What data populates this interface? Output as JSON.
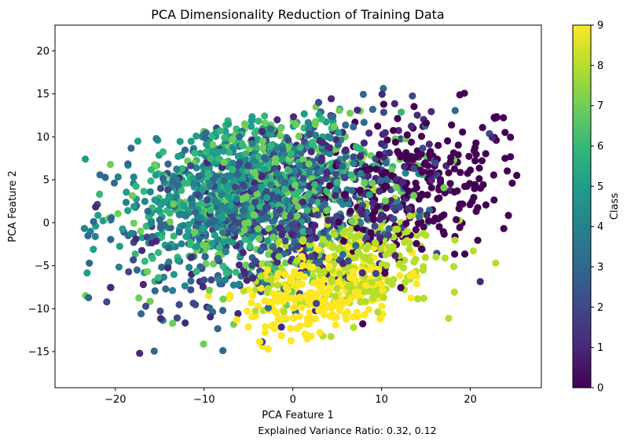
{
  "chart_data": {
    "type": "scatter",
    "title": "PCA Dimensionality Reduction of Training Data",
    "xlabel": "PCA Feature 1",
    "ylabel": "PCA Feature 2",
    "footnote": "Explained Variance Ratio: 0.32, 0.12",
    "xlim": [
      -26.8,
      28.0
    ],
    "ylim": [
      -19.2,
      23.0
    ],
    "xticks": [
      -20,
      -10,
      0,
      10,
      20
    ],
    "yticks": [
      -15,
      -10,
      -5,
      0,
      5,
      10,
      15,
      20
    ],
    "xtick_labels": [
      "−20",
      "−10",
      "0",
      "10",
      "20"
    ],
    "ytick_labels": [
      "−15",
      "−10",
      "−5",
      "0",
      "5",
      "10",
      "15",
      "20"
    ],
    "grid": false,
    "colormap": "viridis",
    "colorbar": {
      "label": "Class",
      "range": [
        0,
        9
      ],
      "ticks": [
        0,
        1,
        2,
        3,
        4,
        5,
        6,
        7,
        8,
        9
      ],
      "tick_labels": [
        "0",
        "1",
        "2",
        "3",
        "4",
        "5",
        "6",
        "7",
        "8",
        "9"
      ]
    },
    "classes": [
      0,
      1,
      2,
      3,
      4,
      5,
      6,
      7,
      8,
      9
    ],
    "class_colors": [
      "#440154",
      "#482878",
      "#3e4989",
      "#31688e",
      "#26828e",
      "#1f9e89",
      "#35b779",
      "#6ece58",
      "#b5de2b",
      "#fde725"
    ],
    "cluster_summary": [
      {
        "class": 0,
        "x_center": 14,
        "y_center": 4,
        "x_spread": 7,
        "y_spread": 5
      },
      {
        "class": 1,
        "x_center": 2,
        "y_center": 2,
        "x_spread": 10,
        "y_spread": 6
      },
      {
        "class": 2,
        "x_center": -2,
        "y_center": 1,
        "x_spread": 9,
        "y_spread": 6
      },
      {
        "class": 3,
        "x_center": -4,
        "y_center": 2,
        "x_spread": 10,
        "y_spread": 6
      },
      {
        "class": 4,
        "x_center": -6,
        "y_center": 3,
        "x_spread": 8,
        "y_spread": 5
      },
      {
        "class": 5,
        "x_center": -8,
        "y_center": 4,
        "x_spread": 7,
        "y_spread": 5
      },
      {
        "class": 6,
        "x_center": -4,
        "y_center": 5,
        "x_spread": 8,
        "y_spread": 5
      },
      {
        "class": 7,
        "x_center": -2,
        "y_center": 3,
        "x_spread": 9,
        "y_spread": 6
      },
      {
        "class": 8,
        "x_center": 6,
        "y_center": -5,
        "x_spread": 6,
        "y_spread": 4
      },
      {
        "class": 9,
        "x_center": 3,
        "y_center": -8,
        "x_spread": 5,
        "y_spread": 3
      }
    ]
  }
}
